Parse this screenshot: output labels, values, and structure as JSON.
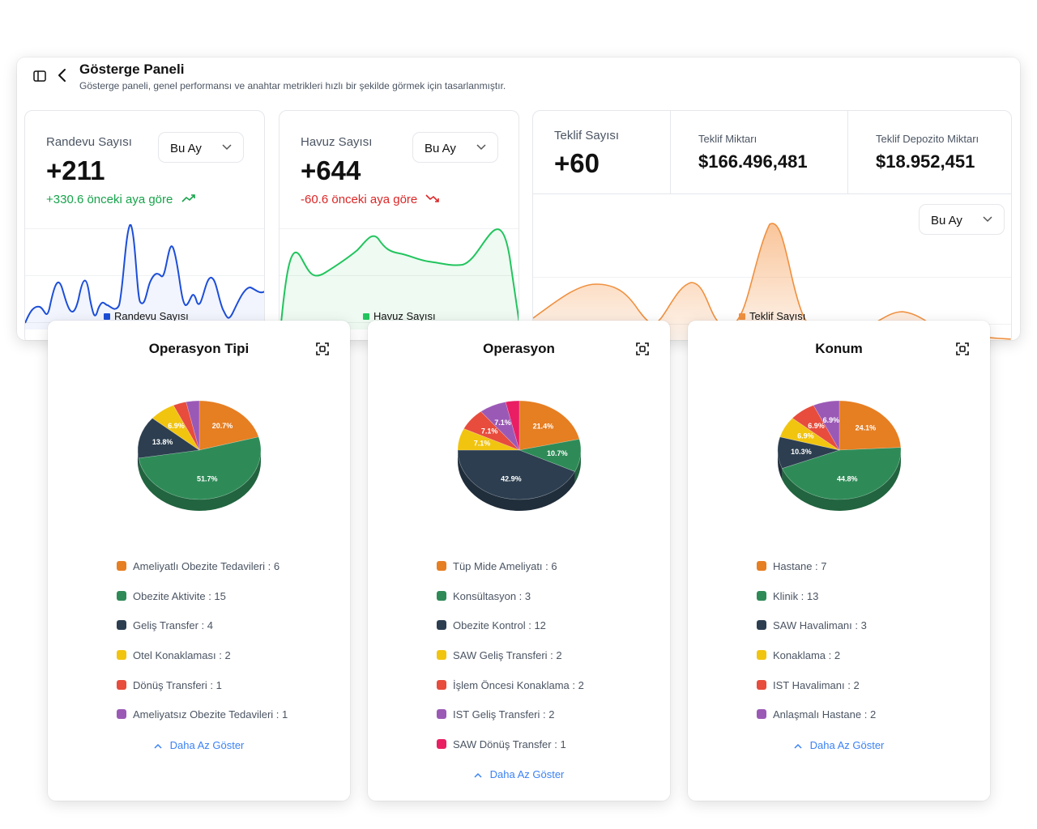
{
  "header": {
    "title": "Gösterge Paneli",
    "subtitle": "Gösterge paneli, genel performansı ve anahtar metrikleri hızlı bir şekilde görmek için tasarlanmıştır."
  },
  "stat_cards": [
    {
      "label": "Randevu Sayısı",
      "value": "+211",
      "change": "+330.6 önceki aya göre",
      "trend": "up",
      "period": "Bu Ay",
      "legend": "Randevu Sayısı",
      "color": "#1d4ed8"
    },
    {
      "label": "Havuz Sayısı",
      "value": "+644",
      "change": "-60.6 önceki aya göre",
      "trend": "down",
      "period": "Bu Ay",
      "legend": "Havuz Sayısı",
      "color": "#22c55e"
    }
  ],
  "offer_card": {
    "count_label": "Teklif Sayısı",
    "count_value": "+60",
    "amount_label": "Teklif Miktarı",
    "amount_value": "$166.496,481",
    "deposit_label": "Teklif Depozito Miktarı",
    "deposit_value": "$18.952,451",
    "period": "Bu Ay",
    "legend": "Teklif Sayısı",
    "color": "#f59e56"
  },
  "pie_cards": [
    {
      "title": "Operasyon Tipi",
      "show_less": "Daha Az Göster",
      "items": [
        {
          "label": "Ameliyatlı Obezite Tedavileri : 6",
          "name": "Ameliyatlı Obezite Tedavileri",
          "value": 6,
          "color": "#e67e22"
        },
        {
          "label": "Obezite Aktivite : 15",
          "name": "Obezite Aktivite",
          "value": 15,
          "color": "#2e8b57"
        },
        {
          "label": "Geliş Transfer : 4",
          "name": "Geliş Transfer",
          "value": 4,
          "color": "#2c3e50"
        },
        {
          "label": "Otel Konaklaması : 2",
          "name": "Otel Konaklaması",
          "value": 2,
          "color": "#f1c40f"
        },
        {
          "label": "Dönüş Transferi : 1",
          "name": "Dönüş Transferi",
          "value": 1,
          "color": "#e74c3c"
        },
        {
          "label": "Ameliyatsız Obezite Tedavileri : 1",
          "name": "Ameliyatsız Obezite Tedavileri",
          "value": 1,
          "color": "#9b59b6"
        }
      ]
    },
    {
      "title": "Operasyon",
      "show_less": "Daha Az Göster",
      "items": [
        {
          "label": "Tüp Mide Ameliyatı : 6",
          "name": "Tüp Mide Ameliyatı",
          "value": 6,
          "color": "#e67e22"
        },
        {
          "label": "Konsültasyon : 3",
          "name": "Konsültasyon",
          "value": 3,
          "color": "#2e8b57"
        },
        {
          "label": "Obezite Kontrol : 12",
          "name": "Obezite Kontrol",
          "value": 12,
          "color": "#2c3e50"
        },
        {
          "label": "SAW Geliş Transferi : 2",
          "name": "SAW Geliş Transferi",
          "value": 2,
          "color": "#f1c40f"
        },
        {
          "label": "İşlem Öncesi Konaklama : 2",
          "name": "İşlem Öncesi Konaklama",
          "value": 2,
          "color": "#e74c3c"
        },
        {
          "label": "IST Geliş Transferi : 2",
          "name": "IST Geliş Transferi",
          "value": 2,
          "color": "#9b59b6"
        },
        {
          "label": "SAW Dönüş Transfer : 1",
          "name": "SAW Dönüş Transfer",
          "value": 1,
          "color": "#e91e63"
        }
      ]
    },
    {
      "title": "Konum",
      "show_less": "Daha Az Göster",
      "items": [
        {
          "label": "Hastane : 7",
          "name": "Hastane",
          "value": 7,
          "color": "#e67e22"
        },
        {
          "label": "Klinik : 13",
          "name": "Klinik",
          "value": 13,
          "color": "#2e8b57"
        },
        {
          "label": "SAW Havalimanı : 3",
          "name": "SAW Havalimanı",
          "value": 3,
          "color": "#2c3e50"
        },
        {
          "label": "Konaklama : 2",
          "name": "Konaklama",
          "value": 2,
          "color": "#f1c40f"
        },
        {
          "label": "IST Havalimanı : 2",
          "name": "IST Havalimanı",
          "value": 2,
          "color": "#e74c3c"
        },
        {
          "label": "Anlaşmalı Hastane : 2",
          "name": "Anlaşmalı Hastane",
          "value": 2,
          "color": "#9b59b6"
        }
      ]
    }
  ],
  "chart_data": [
    {
      "type": "pie",
      "title": "Operasyon Tipi",
      "categories": [
        "Ameliyatlı Obezite Tedavileri",
        "Obezite Aktivite",
        "Geliş Transfer",
        "Otel Konaklaması",
        "Dönüş Transferi",
        "Ameliyatsız Obezite Tedavileri"
      ],
      "values": [
        6,
        15,
        4,
        2,
        1,
        1
      ]
    },
    {
      "type": "pie",
      "title": "Operasyon",
      "categories": [
        "Tüp Mide Ameliyatı",
        "Konsültasyon",
        "Obezite Kontrol",
        "SAW Geliş Transferi",
        "İşlem Öncesi Konaklama",
        "IST Geliş Transferi",
        "SAW Dönüş Transfer"
      ],
      "values": [
        6,
        3,
        12,
        2,
        2,
        2,
        1
      ]
    },
    {
      "type": "pie",
      "title": "Konum",
      "categories": [
        "Hastane",
        "Klinik",
        "SAW Havalimanı",
        "Konaklama",
        "IST Havalimanı",
        "Anlaşmalı Hastane"
      ],
      "values": [
        7,
        13,
        3,
        2,
        2,
        2
      ]
    }
  ]
}
